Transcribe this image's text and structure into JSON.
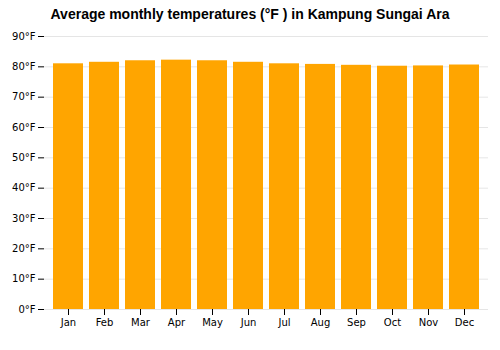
{
  "chart_data": {
    "type": "bar",
    "title": "Average monthly temperatures (°F ) in Kampung Sungai Ara",
    "categories": [
      "Jan",
      "Feb",
      "Mar",
      "Apr",
      "May",
      "Jun",
      "Jul",
      "Aug",
      "Sep",
      "Oct",
      "Nov",
      "Dec"
    ],
    "values": [
      81.0,
      81.5,
      82.0,
      82.2,
      82.0,
      81.5,
      81.0,
      80.8,
      80.5,
      80.2,
      80.3,
      80.6
    ],
    "color": "#FFA500",
    "ylim": [
      0,
      90
    ],
    "yticks": [
      {
        "value": 0,
        "label": "0°F"
      },
      {
        "value": 10,
        "label": "10°F"
      },
      {
        "value": 20,
        "label": "20°F"
      },
      {
        "value": 30,
        "label": "30°F"
      },
      {
        "value": 40,
        "label": "40°F"
      },
      {
        "value": 50,
        "label": "50°F"
      },
      {
        "value": 60,
        "label": "60°F"
      },
      {
        "value": 70,
        "label": "70°F"
      },
      {
        "value": 80,
        "label": "80°F"
      },
      {
        "value": 90,
        "label": "90°F"
      }
    ],
    "grid": true
  }
}
